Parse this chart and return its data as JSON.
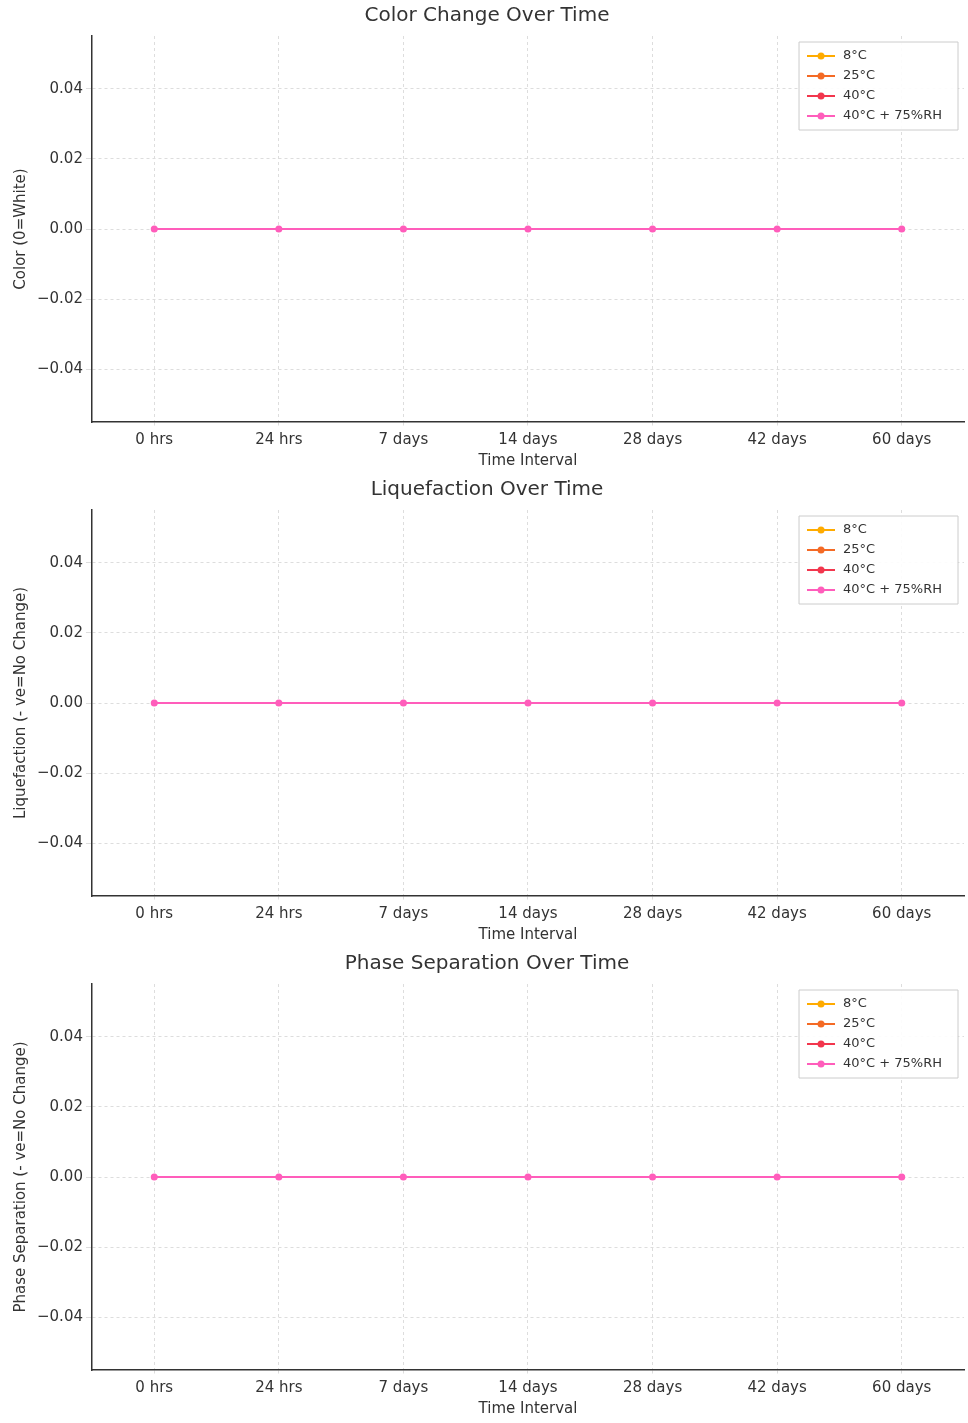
{
  "chart_data": [
    {
      "type": "line",
      "title": "Color Change Over Time",
      "xlabel": "Time Interval",
      "ylabel": "Color (0=White)",
      "categories": [
        "0 hrs",
        "24 hrs",
        "7 days",
        "14 days",
        "28 days",
        "42 days",
        "60 days"
      ],
      "series": [
        {
          "name": "8°C",
          "color": "#ffab00",
          "values": [
            null,
            null,
            null,
            null,
            null,
            null,
            null
          ]
        },
        {
          "name": "25°C",
          "color": "#f46a25",
          "values": [
            null,
            null,
            null,
            null,
            null,
            null,
            null
          ]
        },
        {
          "name": "40°C",
          "color": "#f2364d",
          "values": [
            null,
            null,
            null,
            null,
            null,
            null,
            null
          ]
        },
        {
          "name": "40°C + 75%RH",
          "color": "#ff5dbb",
          "values": [
            0,
            0,
            0,
            0,
            0,
            0,
            0
          ]
        }
      ],
      "ylim": [
        -0.055,
        0.055
      ],
      "yticks": [
        {
          "value": -0.04,
          "label": "−0.04"
        },
        {
          "value": -0.02,
          "label": "−0.02"
        },
        {
          "value": 0,
          "label": "0.00"
        },
        {
          "value": 0.02,
          "label": "0.02"
        },
        {
          "value": 0.04,
          "label": "0.04"
        }
      ],
      "grid": true,
      "legend": "top right",
      "marker": "circle",
      "line_style": "solid"
    },
    {
      "type": "line",
      "title": "Liquefaction Over Time",
      "xlabel": "Time Interval",
      "ylabel": "Liquefaction (- ve=No Change)",
      "categories": [
        "0 hrs",
        "24 hrs",
        "7 days",
        "14 days",
        "28 days",
        "42 days",
        "60 days"
      ],
      "series": [
        {
          "name": "8°C",
          "color": "#ffab00",
          "values": [
            null,
            null,
            null,
            null,
            null,
            null,
            null
          ]
        },
        {
          "name": "25°C",
          "color": "#f46a25",
          "values": [
            null,
            null,
            null,
            null,
            null,
            null,
            null
          ]
        },
        {
          "name": "40°C",
          "color": "#f2364d",
          "values": [
            null,
            null,
            null,
            null,
            null,
            null,
            null
          ]
        },
        {
          "name": "40°C + 75%RH",
          "color": "#ff5dbb",
          "values": [
            0,
            0,
            0,
            0,
            0,
            0,
            0
          ]
        }
      ],
      "ylim": [
        -0.055,
        0.055
      ],
      "yticks": [
        {
          "value": -0.04,
          "label": "−0.04"
        },
        {
          "value": -0.02,
          "label": "−0.02"
        },
        {
          "value": 0,
          "label": "0.00"
        },
        {
          "value": 0.02,
          "label": "0.02"
        },
        {
          "value": 0.04,
          "label": "0.04"
        }
      ],
      "grid": true,
      "legend": "top right",
      "marker": "circle",
      "line_style": "solid"
    },
    {
      "type": "line",
      "title": "Phase Separation Over Time",
      "xlabel": "Time Interval",
      "ylabel": "Phase Separation (- ve=No Change)",
      "categories": [
        "0 hrs",
        "24 hrs",
        "7 days",
        "14 days",
        "28 days",
        "42 days",
        "60 days"
      ],
      "series": [
        {
          "name": "8°C",
          "color": "#ffab00",
          "values": [
            null,
            null,
            null,
            null,
            null,
            null,
            null
          ]
        },
        {
          "name": "25°C",
          "color": "#f46a25",
          "values": [
            null,
            null,
            null,
            null,
            null,
            null,
            null
          ]
        },
        {
          "name": "40°C",
          "color": "#f2364d",
          "values": [
            null,
            null,
            null,
            null,
            null,
            null,
            null
          ]
        },
        {
          "name": "40°C + 75%RH",
          "color": "#ff5dbb",
          "values": [
            0,
            0,
            0,
            0,
            0,
            0,
            0
          ]
        }
      ],
      "ylim": [
        -0.055,
        0.055
      ],
      "yticks": [
        {
          "value": -0.04,
          "label": "−0.04"
        },
        {
          "value": -0.02,
          "label": "−0.02"
        },
        {
          "value": 0,
          "label": "0.00"
        },
        {
          "value": 0.02,
          "label": "0.02"
        },
        {
          "value": 0.04,
          "label": "0.04"
        }
      ],
      "grid": true,
      "legend": "top right",
      "marker": "circle",
      "line_style": "solid"
    }
  ]
}
